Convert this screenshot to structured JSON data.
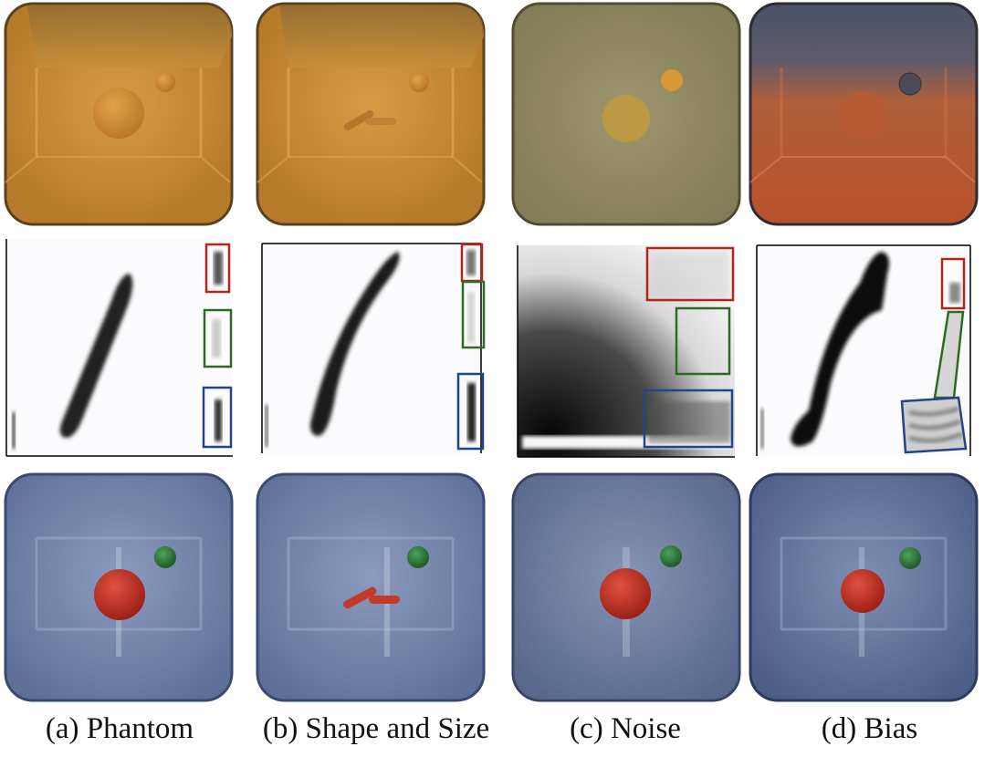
{
  "figure": {
    "columns": [
      {
        "caption": "(a) Phantom"
      },
      {
        "caption": "(b) Shape and Size"
      },
      {
        "caption": "(c) Noise"
      },
      {
        "caption": "(d) Bias"
      }
    ],
    "colors": {
      "orange_cube": "#c98a2e",
      "olive_cube": "#8a8456",
      "blue_cube": "#6f83a8",
      "red_sphere": "#c8322a",
      "green_sphere": "#2f7d3c",
      "red_box": "#b0261a",
      "green_box": "#2e6b22",
      "blue_box": "#22458a"
    }
  }
}
